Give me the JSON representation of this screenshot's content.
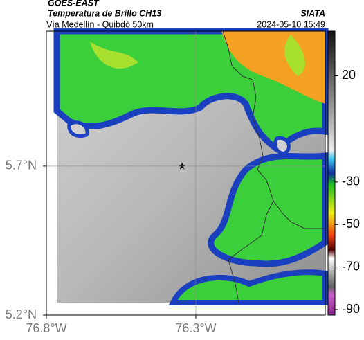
{
  "header": {
    "title": "GOES-EAST",
    "subtitle": "Temperatura de Brillo CH13",
    "brand": "SIATA",
    "region": "Vía Medellín - Quibdó 50km",
    "timestamp": "2024-05-10 15:49"
  },
  "map": {
    "xlim": [
      -76.8,
      -75.867
    ],
    "ylim": [
      5.2,
      6.153
    ],
    "xticks": [
      {
        "value": -76.8,
        "label": "76.8°W"
      },
      {
        "value": -76.3,
        "label": "76.3°W"
      }
    ],
    "yticks": [
      {
        "value": 5.7,
        "label": "5.7°N"
      },
      {
        "value": 5.2,
        "label": "5.2°N"
      }
    ],
    "grid": true
  },
  "colorbar": {
    "lim": [
      -92.6,
      41
    ],
    "ticks": [
      20,
      -30,
      -50,
      -70,
      -90
    ]
  }
}
